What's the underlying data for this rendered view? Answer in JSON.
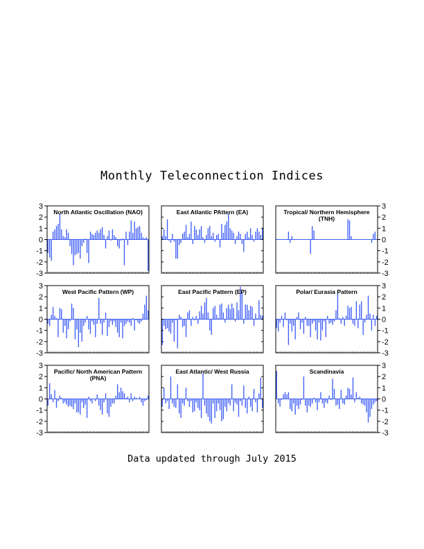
{
  "header": {
    "title": "Monthly Teleconnection Indices"
  },
  "footer": {
    "note": "Data updated through July 2015"
  },
  "colors": {
    "bar": "#3d5cf5",
    "axis": "#000000",
    "background": "#ffffff"
  },
  "chart_data": [
    {
      "type": "bar",
      "title": "North Atlantic Oscillation (NAO)",
      "ylim": [
        -3,
        3
      ],
      "yticks": [
        -3,
        -2,
        -1,
        0,
        1,
        2,
        3
      ],
      "values": [
        -1.2,
        -1.6,
        -1.9,
        0.7,
        0.9,
        1.2,
        1.4,
        2.3,
        0.9,
        0.3,
        0.2,
        0.9,
        0.6,
        -0.6,
        -1.3,
        -2.3,
        -1.4,
        -1.3,
        -1.2,
        -1.7,
        -0.6,
        -0.3,
        0.1,
        -1.2,
        -2.1,
        0.7,
        0.5,
        0.4,
        0.6,
        0.8,
        0.6,
        0.9,
        1.1,
        0.4,
        -0.8,
        0.3,
        0.8,
        -0.1,
        0.9,
        0.4,
        0.2,
        -0.6,
        -0.8,
        -0.1,
        0.1,
        -2.3,
        0.7,
        -0.5,
        0.7,
        1.7,
        0.6,
        1.6,
        1.0,
        1.1,
        1.2,
        0.6,
        0.2,
        0.1,
        0.2,
        -2.8
      ]
    },
    {
      "type": "bar",
      "title": "East Atlantic PAttern (EA)",
      "ylim": [
        -3,
        3
      ],
      "yticks": [
        -3,
        -2,
        -1,
        0,
        1,
        2,
        3
      ],
      "values": [
        0.3,
        0.9,
        0.3,
        1.8,
        -0.1,
        -0.3,
        0.5,
        -0.2,
        -1.7,
        -1.7,
        -0.5,
        -0.3,
        0.5,
        0.7,
        1.3,
        0.2,
        0.5,
        1.6,
        -0.4,
        1.2,
        0.9,
        0.4,
        0.9,
        1.2,
        0.2,
        -0.3,
        0.4,
        1.0,
        1.2,
        0.3,
        0.6,
        -0.2,
        0.4,
        0.5,
        -0.7,
        1.4,
        0.6,
        1.3,
        1.6,
        2.3,
        1.0,
        0.8,
        0.6,
        -0.4,
        0.3,
        0.7,
        0.5,
        -0.4,
        -1.1,
        0.5,
        0.7,
        0.2,
        1.0,
        0.4,
        -0.2,
        0.7,
        1.0,
        0.7,
        0.4,
        1.0
      ]
    },
    {
      "type": "bar",
      "title": "Tropical/ Northern Hemisphere\n(TNH)",
      "ylim": [
        -3,
        3
      ],
      "yticks": [
        -3,
        -2,
        -1,
        0,
        1,
        2,
        3
      ],
      "values": [
        0,
        0,
        0,
        0,
        0,
        0,
        0,
        0.7,
        -0.3,
        0.3,
        0,
        0,
        0,
        0,
        0,
        0,
        0,
        0,
        0,
        0,
        -1.3,
        1.2,
        0.8,
        0,
        0,
        0,
        0,
        0,
        0,
        0,
        0,
        0,
        0,
        0,
        0,
        0,
        0,
        0,
        0,
        0,
        0,
        0,
        1.8,
        1.7,
        0.3,
        0,
        0,
        0,
        0,
        0,
        0,
        0,
        0,
        0,
        0,
        0,
        -0.3,
        0.5,
        0.7,
        0
      ]
    },
    {
      "type": "bar",
      "title": "West Pacific Pattern (WP)",
      "ylim": [
        -3,
        3
      ],
      "yticks": [
        -3,
        -2,
        -1,
        0,
        1,
        2,
        3
      ],
      "values": [
        -0.4,
        -0.6,
        0.4,
        1.1,
        0.3,
        0.1,
        -1.6,
        1.0,
        0.9,
        -1.2,
        -0.6,
        -1.7,
        -0.9,
        -0.2,
        1.4,
        1.0,
        -1.8,
        -0.9,
        -2.5,
        -1.2,
        -2.0,
        -0.6,
        -0.3,
        0.3,
        -0.9,
        -1.3,
        -0.2,
        -0.5,
        -1.6,
        -0.4,
        1.9,
        -0.4,
        -1.4,
        -0.3,
        0.6,
        -1.5,
        -0.7,
        -0.2,
        -0.5,
        -0.2,
        -0.7,
        -1.2,
        -1.6,
        -0.3,
        -1.7,
        -0.6,
        -0.4,
        -0.2,
        -0.3,
        -0.6,
        0.1,
        -1.0,
        -0.1,
        -0.3,
        -0.4,
        -0.2,
        0.5,
        1.3,
        2.1,
        0.8
      ]
    },
    {
      "type": "bar",
      "title": "East Pacific Pattern (EP)",
      "ylim": [
        -3,
        3
      ],
      "yticks": [
        -3,
        -2,
        -1,
        0,
        1,
        2,
        3
      ],
      "values": [
        -2.3,
        -0.6,
        -0.9,
        -0.8,
        -1.1,
        -1.3,
        -0.3,
        -2.0,
        -0.1,
        -2.6,
        0.4,
        0.2,
        -0.7,
        -0.6,
        -1.6,
        0.6,
        0.8,
        -0.6,
        0.2,
        -0.1,
        0.3,
        -0.4,
        0.7,
        1.2,
        0.5,
        1.5,
        1.9,
        0.6,
        -1.0,
        -1.4,
        1.0,
        1.2,
        0.4,
        0.1,
        1.3,
        1.4,
        0.6,
        -0.3,
        1.0,
        1.3,
        0.9,
        1.4,
        1.0,
        -0.2,
        1.5,
        0.8,
        2.9,
        2.4,
        -0.4,
        1.3,
        1.3,
        0.8,
        1.2,
        1.1,
        -0.6,
        0.5,
        0.1,
        1.7,
        0.4,
        0.3
      ]
    },
    {
      "type": "bar",
      "title": "Polar/ Eurasia Pattern",
      "ylim": [
        -3,
        3
      ],
      "yticks": [
        -3,
        -2,
        -1,
        0,
        1,
        2,
        3
      ],
      "values": [
        -0.8,
        -1.1,
        -0.3,
        0.3,
        -0.7,
        0.6,
        -0.1,
        -2.3,
        -0.4,
        -1.1,
        -0.6,
        -1.8,
        0.2,
        0.6,
        -0.9,
        -0.3,
        -1.3,
        0.2,
        -0.6,
        -0.6,
        -1.6,
        -0.4,
        -0.2,
        -1.0,
        -1.8,
        -0.3,
        -1.9,
        -1.0,
        -0.2,
        -1.6,
        0.3,
        -0.4,
        -0.3,
        -0.5,
        -0.2,
        0.8,
        2.3,
        0.1,
        -0.4,
        0.2,
        -0.6,
        0.3,
        1.2,
        1.0,
        1.1,
        -0.4,
        -0.6,
        1.6,
        -0.8,
        1.3,
        1.6,
        -1.4,
        -0.3,
        0.4,
        2.1,
        0.5,
        -1.0,
        0.4,
        -0.6,
        0.3
      ]
    },
    {
      "type": "bar",
      "title": "Pacific/ North American Pattern\n(PNA)",
      "ylim": [
        -3,
        3
      ],
      "yticks": [
        -3,
        -2,
        -1,
        0,
        1,
        2,
        3
      ],
      "values": [
        -0.6,
        1.4,
        0.4,
        -0.3,
        0.8,
        -0.8,
        -0.2,
        0.3,
        0.1,
        -0.4,
        -0.3,
        -0.5,
        -0.7,
        -0.6,
        -0.7,
        -0.9,
        -0.4,
        -1.2,
        -1.2,
        -1.4,
        -0.3,
        -0.8,
        -0.5,
        -1.7,
        0.2,
        -0.2,
        -0.4,
        0.0,
        -0.2,
        0.4,
        -0.6,
        -1.0,
        -1.4,
        -0.3,
        0.5,
        -1.3,
        -1.6,
        -0.7,
        -0.4,
        -0.4,
        0.3,
        1.3,
        0.6,
        1.0,
        0.7,
        0.5,
        0.1,
        0.2,
        -0.3,
        0.5,
        -0.2,
        0.2,
        0.1,
        0.0,
        0.2,
        -0.3,
        -0.6,
        -0.2,
        -0.1,
        0.3
      ]
    },
    {
      "type": "bar",
      "title": "East Atlantic/ West Russia",
      "ylim": [
        -3,
        3
      ],
      "yticks": [
        -3,
        -2,
        -1,
        0,
        1,
        2,
        3
      ],
      "values": [
        -0.7,
        1.0,
        -0.4,
        -0.2,
        -0.9,
        2.0,
        -0.4,
        -0.7,
        -0.8,
        1.3,
        -1.3,
        -1.7,
        -0.4,
        -0.6,
        1.0,
        -0.2,
        -0.7,
        -0.2,
        -1.2,
        -1.1,
        -0.3,
        -0.8,
        -1.0,
        -1.7,
        2.3,
        -0.6,
        -1.3,
        -1.6,
        -2.0,
        -2.2,
        -0.4,
        -1.7,
        -1.1,
        -0.4,
        -1.0,
        -2.0,
        -1.8,
        -0.7,
        -1.1,
        -0.4,
        -0.6,
        1.3,
        -1.1,
        -0.3,
        -0.5,
        -1.6,
        -0.2,
        -0.6,
        1.2,
        -0.8,
        -1.3,
        0.2,
        -0.7,
        -1.1,
        0.9,
        -0.3,
        -1.2,
        0.5,
        1.9,
        -0.8
      ]
    },
    {
      "type": "bar",
      "title": "Scandinavia",
      "ylim": [
        -3,
        3
      ],
      "yticks": [
        -3,
        -2,
        -1,
        0,
        1,
        2,
        3
      ],
      "values": [
        2.5,
        -0.4,
        -0.7,
        -0.1,
        0.4,
        0.6,
        0.4,
        0.6,
        -0.9,
        -1.1,
        -0.4,
        -1.4,
        -0.6,
        -0.9,
        -0.5,
        -0.1,
        2.0,
        -0.6,
        -1.2,
        -0.6,
        -0.7,
        -0.4,
        0.1,
        -0.3,
        -1.0,
        -0.3,
        0.6,
        -0.4,
        -0.8,
        -0.3,
        -0.4,
        0.3,
        -0.1,
        1.8,
        0.9,
        -0.6,
        -0.5,
        -0.9,
        0.8,
        -0.4,
        -0.5,
        0.3,
        1.0,
        0.9,
        0.4,
        1.9,
        -0.3,
        0.6,
        0.1,
        0.2,
        -0.4,
        -0.5,
        -0.6,
        -1.2,
        -2.1,
        -1.6,
        -0.9,
        -0.5,
        -0.3,
        -0.2
      ]
    }
  ]
}
